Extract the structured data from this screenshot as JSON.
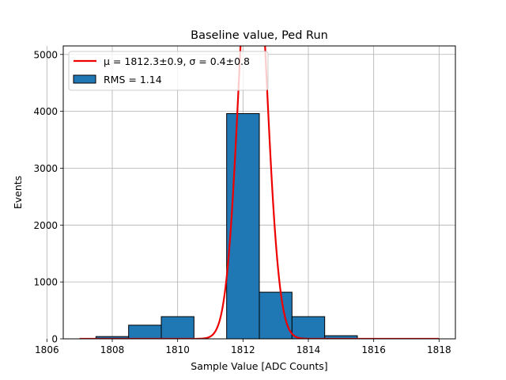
{
  "chart_data": {
    "type": "bar",
    "title": "Baseline value, Ped Run",
    "xlabel": "Sample Value [ADC Counts]",
    "ylabel": "Events",
    "xlim": [
      1806.5,
      1818.5
    ],
    "ylim": [
      0,
      5150
    ],
    "x_ticks": [
      1806,
      1808,
      1810,
      1812,
      1814,
      1816,
      1818
    ],
    "y_ticks": [
      0,
      1000,
      2000,
      3000,
      4000,
      5000
    ],
    "grid": true,
    "legend_position": "top-left",
    "bins": [
      {
        "x0": 1807.5,
        "x1": 1808.5,
        "count": 40
      },
      {
        "x0": 1808.5,
        "x1": 1809.5,
        "count": 240
      },
      {
        "x0": 1809.5,
        "x1": 1810.5,
        "count": 390
      },
      {
        "x0": 1811.5,
        "x1": 1812.5,
        "count": 3960
      },
      {
        "x0": 1812.5,
        "x1": 1813.5,
        "count": 820
      },
      {
        "x0": 1813.5,
        "x1": 1814.5,
        "count": 390
      },
      {
        "x0": 1814.5,
        "x1": 1815.5,
        "count": 55
      }
    ],
    "fit": {
      "type": "gaussian",
      "mu": 1812.3,
      "sigma": 0.4,
      "amplitude": 8000,
      "x_range": [
        1807,
        1818
      ]
    },
    "legend": [
      {
        "label": "μ = 1812.3±0.9, σ = 0.4±0.8",
        "style": "line",
        "color": "#ee0000"
      },
      {
        "label": "RMS = 1.14",
        "style": "patch",
        "color": "#1f77b4"
      }
    ],
    "colors": {
      "bar_fill": "#1f77b4",
      "bar_edge": "#000000",
      "fit_line": "#ee0000",
      "grid": "#b0b0b0"
    }
  }
}
